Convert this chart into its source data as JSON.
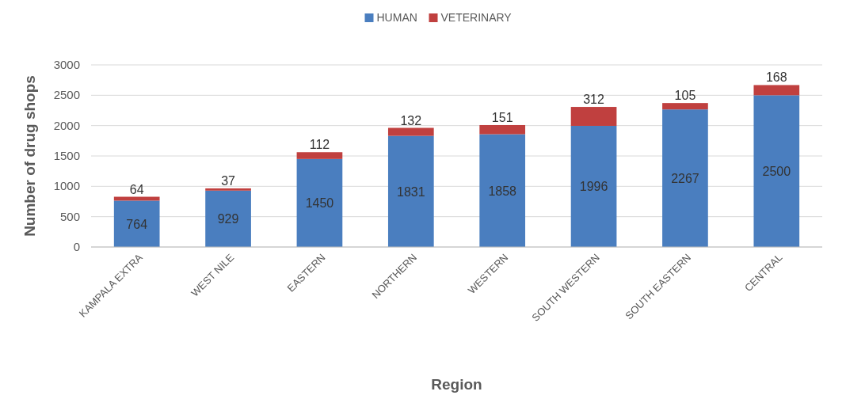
{
  "chart_data": {
    "type": "bar",
    "stacked": true,
    "xlabel": "Region",
    "ylabel": "Number of drug shops",
    "categories": [
      "KAMPALA EXTRA",
      "WEST NILE",
      "EASTERN",
      "NORTHERN",
      "WESTERN",
      "SOUTH WESTERN",
      "SOUTH EASTERN",
      "CENTRAL"
    ],
    "series": [
      {
        "name": "HUMAN",
        "color": "#4a7ebf",
        "values": [
          764,
          929,
          1450,
          1831,
          1858,
          1996,
          2267,
          2500
        ]
      },
      {
        "name": "VETERINARY",
        "color": "#c0403f",
        "values": [
          64,
          37,
          112,
          132,
          151,
          312,
          105,
          168
        ]
      }
    ],
    "ylim": [
      0,
      3000
    ],
    "yticks": [
      0,
      500,
      1000,
      1500,
      2000,
      2500,
      3000
    ],
    "grid": "y",
    "legend": "top",
    "data_labels": true
  }
}
